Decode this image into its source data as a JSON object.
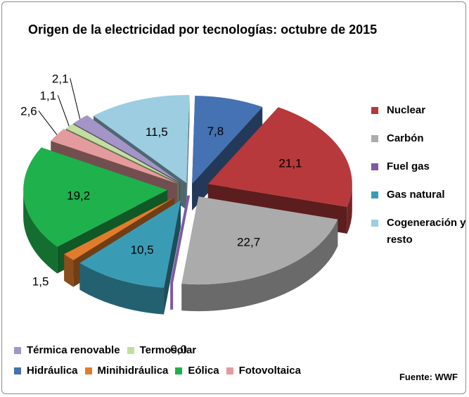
{
  "chart_data": {
    "type": "pie",
    "title": "Origen de la electricidad por tecnologías: octubre de 2015",
    "source": "Fuente: WWF",
    "slices": [
      {
        "name": "Hidráulica",
        "value": 7.8,
        "label": "7,8",
        "color": "#4572b2"
      },
      {
        "name": "Nuclear",
        "value": 21.1,
        "label": "21,1",
        "color": "#b7393b"
      },
      {
        "name": "Carbón",
        "value": 22.7,
        "label": "22,7",
        "color": "#ababab"
      },
      {
        "name": "Fuel gas",
        "value": 0.0,
        "label": "0,0",
        "color": "#7e5aa3"
      },
      {
        "name": "Gas natural",
        "value": 10.5,
        "label": "10,5",
        "color": "#3a9cb4"
      },
      {
        "name": "Minihidráulica",
        "value": 1.5,
        "label": "1,5",
        "color": "#e07c2c"
      },
      {
        "name": "Eólica",
        "value": 19.2,
        "label": "19,2",
        "color": "#1fb14c"
      },
      {
        "name": "Fotovoltaica",
        "value": 2.6,
        "label": "2,6",
        "color": "#e49b9e"
      },
      {
        "name": "Termosolar",
        "value": 1.1,
        "label": "1,1",
        "color": "#c2dea0"
      },
      {
        "name": "Térmica renovable",
        "value": 2.1,
        "label": "2,1",
        "color": "#a495c8"
      },
      {
        "name": "Cogeneración y resto",
        "value": 11.5,
        "label": "11,5",
        "color": "#9ccde1"
      }
    ],
    "legend_right": [
      {
        "name": "Nuclear",
        "color": "#b7393b"
      },
      {
        "name": "Carbón",
        "color": "#ababab"
      },
      {
        "name": "Fuel gas",
        "color": "#7e5aa3"
      },
      {
        "name": "Gas natural",
        "color": "#3a9cb4"
      },
      {
        "name": "Cogeneración y resto",
        "color": "#9ccde1"
      }
    ],
    "legend_bottom_row1": [
      {
        "name": "Térmica renovable",
        "color": "#a495c8"
      },
      {
        "name": "Termosolar",
        "color": "#c2dea0"
      }
    ],
    "legend_bottom_row2": [
      {
        "name": "Hidráulica",
        "color": "#4572b2"
      },
      {
        "name": "Minihidráulica",
        "color": "#e07c2c"
      },
      {
        "name": "Eólica",
        "color": "#1fb14c"
      },
      {
        "name": "Fotovoltaica",
        "color": "#e49b9e"
      }
    ]
  }
}
